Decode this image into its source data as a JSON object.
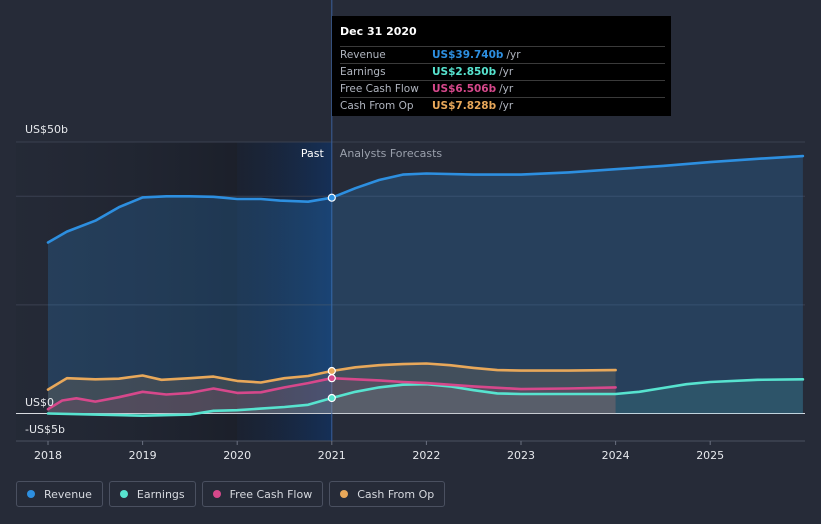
{
  "chart_data": {
    "type": "line",
    "title": "",
    "ylim": [
      -5,
      50
    ],
    "y_axis_labels": [
      {
        "value": 50,
        "label": "US$50b"
      },
      {
        "value": 0,
        "label": "US$0"
      },
      {
        "value": -5,
        "label": "-US$5b"
      }
    ],
    "x_ticks": [
      2018,
      2019,
      2020,
      2021,
      2022,
      2023,
      2024,
      2025
    ],
    "past_label": "Past",
    "forecast_label": "Analysts Forecasts",
    "divider_x": 2021.0,
    "series": [
      {
        "name": "Revenue",
        "color": "#2d8fe0",
        "fill": true,
        "points": [
          [
            2018.0,
            31.5
          ],
          [
            2018.2,
            33.5
          ],
          [
            2018.5,
            35.5
          ],
          [
            2018.75,
            38
          ],
          [
            2019.0,
            39.8
          ],
          [
            2019.25,
            40
          ],
          [
            2019.5,
            40
          ],
          [
            2019.75,
            39.9
          ],
          [
            2020.0,
            39.5
          ],
          [
            2020.25,
            39.5
          ],
          [
            2020.45,
            39.2
          ],
          [
            2020.75,
            39
          ],
          [
            2021.0,
            39.74
          ],
          [
            2021.25,
            41.5
          ],
          [
            2021.5,
            43
          ],
          [
            2021.75,
            44
          ],
          [
            2022.0,
            44.2
          ],
          [
            2022.5,
            44
          ],
          [
            2023.0,
            44
          ],
          [
            2023.5,
            44.4
          ],
          [
            2024.0,
            45
          ],
          [
            2024.5,
            45.6
          ],
          [
            2025.0,
            46.3
          ],
          [
            2025.5,
            46.9
          ],
          [
            2025.98,
            47.4
          ]
        ]
      },
      {
        "name": "Earnings",
        "color": "#57e3cf",
        "fill": true,
        "points": [
          [
            2018.0,
            0
          ],
          [
            2018.5,
            -0.2
          ],
          [
            2019.0,
            -0.4
          ],
          [
            2019.5,
            -0.2
          ],
          [
            2019.75,
            0.5
          ],
          [
            2020.0,
            0.6
          ],
          [
            2020.25,
            0.9
          ],
          [
            2020.5,
            1.2
          ],
          [
            2020.75,
            1.6
          ],
          [
            2021.0,
            2.85
          ],
          [
            2021.25,
            4
          ],
          [
            2021.5,
            4.8
          ],
          [
            2021.75,
            5.3
          ],
          [
            2022.0,
            5.4
          ],
          [
            2022.25,
            5
          ],
          [
            2022.5,
            4.3
          ],
          [
            2022.75,
            3.7
          ],
          [
            2023.0,
            3.6
          ],
          [
            2023.5,
            3.6
          ],
          [
            2024.0,
            3.6
          ],
          [
            2024.25,
            4
          ],
          [
            2024.5,
            4.7
          ],
          [
            2024.75,
            5.4
          ],
          [
            2025.0,
            5.8
          ],
          [
            2025.5,
            6.2
          ],
          [
            2025.98,
            6.3
          ]
        ]
      },
      {
        "name": "Free Cash Flow",
        "color": "#d6488b",
        "fill": true,
        "points": [
          [
            2018.0,
            0.8
          ],
          [
            2018.15,
            2.4
          ],
          [
            2018.3,
            2.8
          ],
          [
            2018.5,
            2.2
          ],
          [
            2018.75,
            3
          ],
          [
            2019.0,
            4
          ],
          [
            2019.25,
            3.5
          ],
          [
            2019.5,
            3.8
          ],
          [
            2019.75,
            4.6
          ],
          [
            2020.0,
            3.8
          ],
          [
            2020.25,
            3.9
          ],
          [
            2020.5,
            4.8
          ],
          [
            2020.75,
            5.6
          ],
          [
            2021.0,
            6.506
          ],
          [
            2021.25,
            6.3
          ],
          [
            2021.5,
            6.1
          ],
          [
            2021.75,
            5.8
          ],
          [
            2022.0,
            5.6
          ],
          [
            2022.5,
            5
          ],
          [
            2023.0,
            4.5
          ],
          [
            2023.5,
            4.6
          ],
          [
            2024.0,
            4.8
          ]
        ]
      },
      {
        "name": "Cash From Op",
        "color": "#e8a85a",
        "fill": true,
        "points": [
          [
            2018.0,
            4.4
          ],
          [
            2018.2,
            6.5
          ],
          [
            2018.5,
            6.3
          ],
          [
            2018.75,
            6.4
          ],
          [
            2019.0,
            7
          ],
          [
            2019.2,
            6.2
          ],
          [
            2019.5,
            6.5
          ],
          [
            2019.75,
            6.8
          ],
          [
            2020.0,
            6
          ],
          [
            2020.25,
            5.7
          ],
          [
            2020.5,
            6.5
          ],
          [
            2020.75,
            6.9
          ],
          [
            2021.0,
            7.828
          ],
          [
            2021.25,
            8.5
          ],
          [
            2021.5,
            8.9
          ],
          [
            2021.75,
            9.1
          ],
          [
            2022.0,
            9.2
          ],
          [
            2022.25,
            8.9
          ],
          [
            2022.5,
            8.4
          ],
          [
            2022.75,
            8
          ],
          [
            2023.0,
            7.9
          ],
          [
            2023.5,
            7.9
          ],
          [
            2024.0,
            8
          ]
        ]
      }
    ],
    "highlight_x": 2021.0
  },
  "tooltip": {
    "date": "Dec 31 2020",
    "rows": [
      {
        "label": "Revenue",
        "value": "US$39.740b",
        "unit": "/yr",
        "color": "#2d8fe0"
      },
      {
        "label": "Earnings",
        "value": "US$2.850b",
        "unit": "/yr",
        "color": "#57e3cf"
      },
      {
        "label": "Free Cash Flow",
        "value": "US$6.506b",
        "unit": "/yr",
        "color": "#d6488b"
      },
      {
        "label": "Cash From Op",
        "value": "US$7.828b",
        "unit": "/yr",
        "color": "#e8a85a"
      }
    ]
  },
  "legend": [
    {
      "label": "Revenue",
      "color": "#2d8fe0"
    },
    {
      "label": "Earnings",
      "color": "#57e3cf"
    },
    {
      "label": "Free Cash Flow",
      "color": "#d6488b"
    },
    {
      "label": "Cash From Op",
      "color": "#e8a85a"
    }
  ]
}
